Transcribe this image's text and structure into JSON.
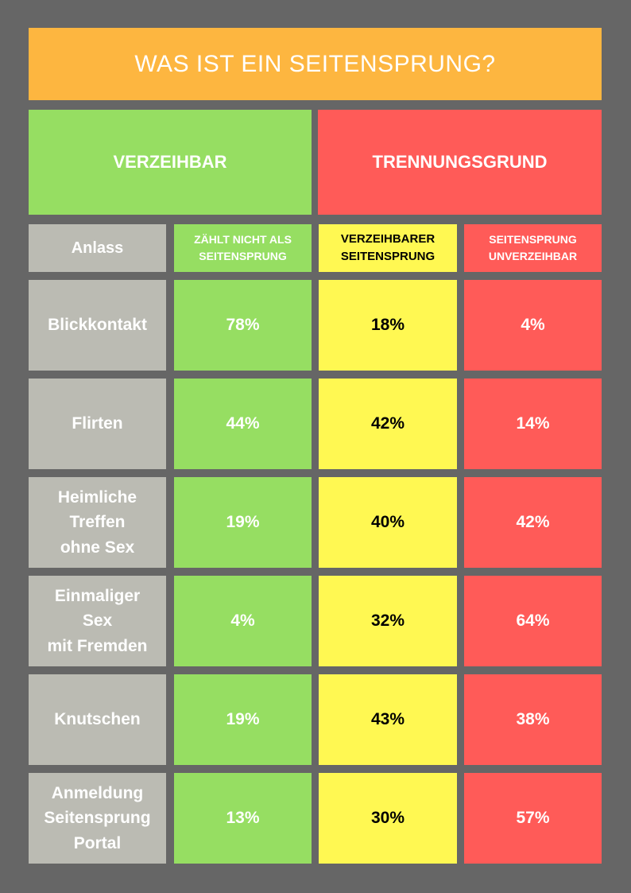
{
  "title": "WAS IST EIN SEITENSPRUNG?",
  "groups": {
    "left": "VERZEIHBAR",
    "right": "TRENNUNGSGRUND"
  },
  "headers": {
    "anlass": "Anlass",
    "not_counted": "ZÄHLT NICHT ALS\nSEITENSPRUNG",
    "forgivable": "VERZEIHBARER\nSEITENSPRUNG",
    "unforgivable": "SEITENSPRUNG\nUNVERZEIHBAR"
  },
  "colors": {
    "green": "#96DE62",
    "yellow": "#FFF852",
    "red": "#FF5B58",
    "gray": "#BBBBB3",
    "orange": "#FDB640",
    "background": "#666666"
  },
  "chart_data": {
    "type": "table",
    "title": "WAS IST EIN SEITENSPRUNG?",
    "columns": [
      "Anlass",
      "ZÄHLT NICHT ALS SEITENSPRUNG",
      "VERZEIHBARER SEITENSPRUNG",
      "SEITENSPRUNG UNVERZEIHBAR"
    ],
    "rows": [
      {
        "label": "Blickkontakt",
        "not_counted": "78%",
        "forgivable": "18%",
        "unforgivable": "4%"
      },
      {
        "label": "Flirten",
        "not_counted": "44%",
        "forgivable": "42%",
        "unforgivable": "14%"
      },
      {
        "label": "Heimliche\nTreffen\nohne Sex",
        "not_counted": "19%",
        "forgivable": "40%",
        "unforgivable": "42%"
      },
      {
        "label": "Einmaliger\nSex\nmit Fremden",
        "not_counted": "4%",
        "forgivable": "32%",
        "unforgivable": "64%"
      },
      {
        "label": "Knutschen",
        "not_counted": "19%",
        "forgivable": "43%",
        "unforgivable": "38%"
      },
      {
        "label": "Anmeldung\nSeitensprung\nPortal",
        "not_counted": "13%",
        "forgivable": "30%",
        "unforgivable": "57%"
      }
    ]
  }
}
